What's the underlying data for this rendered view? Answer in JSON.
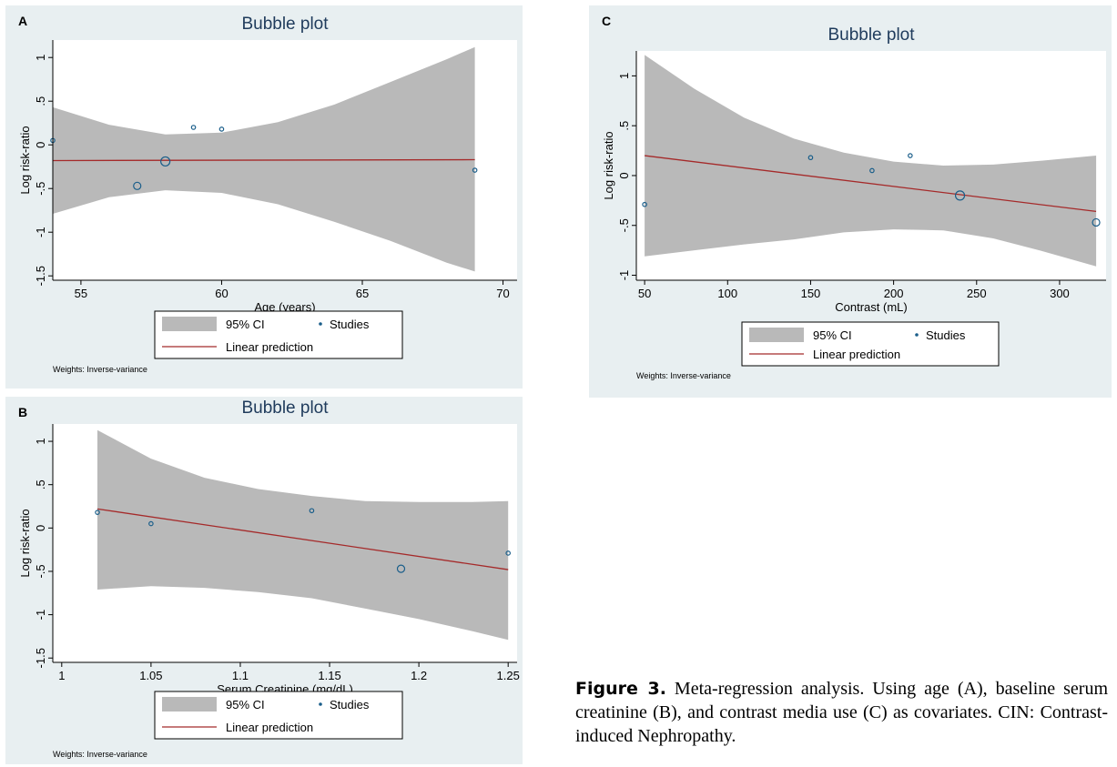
{
  "chart_data": [
    {
      "panel_letter": "A",
      "type": "scatter",
      "title": "Bubble plot",
      "xlabel": "Age (years)",
      "ylabel": "Log risk-ratio",
      "xlim": [
        54,
        70.5
      ],
      "ylim": [
        -1.55,
        1.2
      ],
      "xticks": [
        55,
        60,
        65,
        70
      ],
      "xtick_labels": [
        "55",
        "60",
        "65",
        "70"
      ],
      "yticks": [
        1,
        0.5,
        0,
        -0.5,
        -1,
        -1.5
      ],
      "ytick_labels": [
        "1",
        ".5",
        "0",
        "-.5",
        "-1",
        "-1.5"
      ],
      "ci_band": {
        "x": [
          54,
          56,
          58,
          60,
          62,
          64,
          66,
          68,
          69
        ],
        "upper": [
          0.43,
          0.23,
          0.12,
          0.14,
          0.26,
          0.46,
          0.72,
          0.98,
          1.12
        ],
        "lower": [
          -0.79,
          -0.6,
          -0.52,
          -0.55,
          -0.68,
          -0.88,
          -1.1,
          -1.35,
          -1.45
        ]
      },
      "linear_prediction": {
        "x": [
          54,
          69
        ],
        "y": [
          -0.18,
          -0.17
        ]
      },
      "points": [
        {
          "x": 54,
          "y": 0.05,
          "weight": 1
        },
        {
          "x": 57,
          "y": -0.47,
          "weight": 2
        },
        {
          "x": 58,
          "y": -0.19,
          "weight": 3
        },
        {
          "x": 59,
          "y": 0.2,
          "weight": 1
        },
        {
          "x": 60,
          "y": 0.18,
          "weight": 1
        },
        {
          "x": 69,
          "y": -0.29,
          "weight": 1
        }
      ],
      "legend": {
        "ci": "95% CI",
        "studies": "Studies",
        "line": "Linear prediction"
      },
      "weights_note": "Weights: Inverse-variance"
    },
    {
      "panel_letter": "B",
      "type": "scatter",
      "title": "Bubble plot",
      "xlabel": "Serum Creatinine (mg/dL)",
      "ylabel": "Log risk-ratio",
      "xlim": [
        0.995,
        1.255
      ],
      "ylim": [
        -1.55,
        1.2
      ],
      "xticks": [
        1,
        1.05,
        1.1,
        1.15,
        1.2,
        1.25
      ],
      "xtick_labels": [
        "1",
        "1.05",
        "1.1",
        "1.15",
        "1.2",
        "1.25"
      ],
      "yticks": [
        1,
        0.5,
        0,
        -0.5,
        -1,
        -1.5
      ],
      "ytick_labels": [
        "1",
        ".5",
        "0",
        "-.5",
        "-1",
        "-1.5"
      ],
      "ci_band": {
        "x": [
          1.02,
          1.05,
          1.08,
          1.11,
          1.14,
          1.17,
          1.2,
          1.23,
          1.25
        ],
        "upper": [
          1.13,
          0.8,
          0.58,
          0.45,
          0.37,
          0.31,
          0.3,
          0.3,
          0.31
        ],
        "lower": [
          -0.71,
          -0.67,
          -0.69,
          -0.74,
          -0.81,
          -0.93,
          -1.05,
          -1.19,
          -1.29
        ]
      },
      "linear_prediction": {
        "x": [
          1.02,
          1.25
        ],
        "y": [
          0.22,
          -0.48
        ]
      },
      "points": [
        {
          "x": 1.02,
          "y": 0.18,
          "weight": 1
        },
        {
          "x": 1.05,
          "y": 0.05,
          "weight": 1
        },
        {
          "x": 1.14,
          "y": 0.2,
          "weight": 1
        },
        {
          "x": 1.19,
          "y": -0.47,
          "weight": 2
        },
        {
          "x": 1.25,
          "y": -0.29,
          "weight": 1
        }
      ],
      "legend": {
        "ci": "95% CI",
        "studies": "Studies",
        "line": "Linear prediction"
      },
      "weights_note": "Weights: Inverse-variance"
    },
    {
      "panel_letter": "C",
      "type": "scatter",
      "title": "Bubble plot",
      "xlabel": "Contrast (mL)",
      "ylabel": "Log risk-ratio",
      "xlim": [
        45,
        328
      ],
      "ylim": [
        -1.05,
        1.25
      ],
      "xticks": [
        50,
        100,
        150,
        200,
        250,
        300
      ],
      "xtick_labels": [
        "50",
        "100",
        "150",
        "200",
        "250",
        "300"
      ],
      "yticks": [
        1,
        0.5,
        0,
        -0.5,
        -1
      ],
      "ytick_labels": [
        "1",
        ".5",
        "0",
        "-.5",
        "-1"
      ],
      "ci_band": {
        "x": [
          50,
          80,
          110,
          140,
          170,
          200,
          230,
          260,
          290,
          322
        ],
        "upper": [
          1.21,
          0.87,
          0.58,
          0.37,
          0.23,
          0.14,
          0.1,
          0.11,
          0.15,
          0.2
        ],
        "lower": [
          -0.81,
          -0.75,
          -0.69,
          -0.64,
          -0.57,
          -0.54,
          -0.55,
          -0.63,
          -0.76,
          -0.91
        ]
      },
      "linear_prediction": {
        "x": [
          50,
          322
        ],
        "y": [
          0.2,
          -0.36
        ]
      },
      "points": [
        {
          "x": 50,
          "y": -0.29,
          "weight": 1
        },
        {
          "x": 150,
          "y": 0.18,
          "weight": 1
        },
        {
          "x": 187,
          "y": 0.05,
          "weight": 1
        },
        {
          "x": 210,
          "y": 0.2,
          "weight": 1
        },
        {
          "x": 240,
          "y": -0.2,
          "weight": 3
        },
        {
          "x": 322,
          "y": -0.47,
          "weight": 2
        }
      ],
      "legend": {
        "ci": "95% CI",
        "studies": "Studies",
        "line": "Linear prediction"
      },
      "weights_note": "Weights: Inverse-variance"
    }
  ],
  "caption": {
    "label": "Figure 3.",
    "text": " Meta-regression analysis. Using age (A), baseline serum creatinine (B), and contrast media use (C) as covariates. CIN: Contrast-induced Nephropathy."
  },
  "colors": {
    "panel_bg": "#e8eff1",
    "plot_bg": "#ffffff",
    "ci_fill": "#b9b9b9",
    "line": "#a52a2a",
    "marker": "#1a5e8a",
    "title": "#1f3b5c"
  }
}
